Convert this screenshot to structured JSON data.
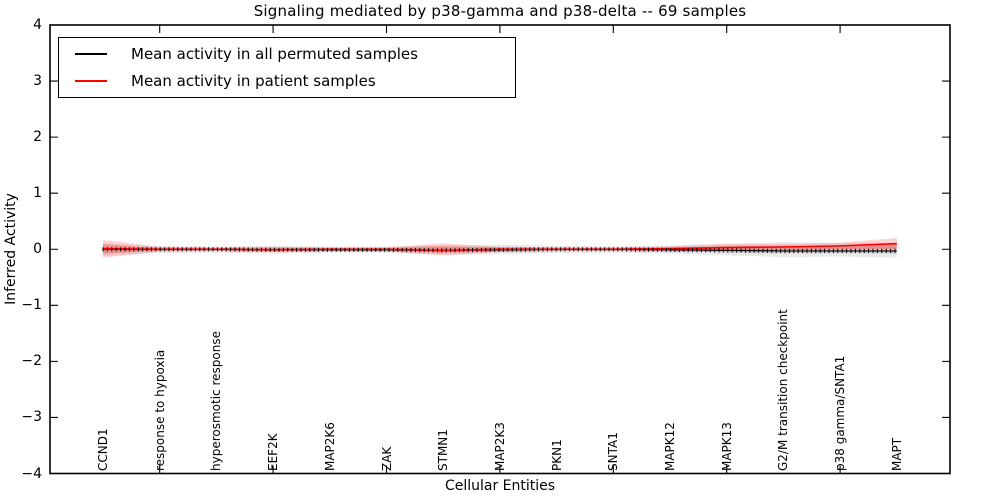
{
  "title": "Signaling mediated by p38-gamma and p38-delta -- 69 samples",
  "axes": {
    "ylabel": "Inferred Activity",
    "xlabel": "Cellular Entities",
    "ytick_labels": [
      "4",
      "3",
      "2",
      "1",
      "0",
      "−1",
      "−2",
      "−3",
      "−4"
    ],
    "ytick_values": [
      4,
      3,
      2,
      1,
      0,
      -1,
      -2,
      -3,
      -4
    ],
    "ylim": [
      -4,
      4
    ]
  },
  "legend": {
    "items": [
      {
        "label": "Mean activity in all permuted samples",
        "color": "#000000"
      },
      {
        "label": "Mean activity in patient samples",
        "color": "#ff0000"
      }
    ]
  },
  "chart_data": {
    "type": "line",
    "title": "Signaling mediated by p38-gamma and p38-delta -- 69 samples",
    "xlabel": "Cellular Entities",
    "ylabel": "Inferred Activity",
    "ylim": [
      -4,
      4
    ],
    "grid": false,
    "legend_position": "upper left",
    "categories": [
      "CCND1",
      "response to hypoxia",
      "hyperosmotic response",
      "EEF2K",
      "MAP2K6",
      "ZAK",
      "STMN1",
      "MAP2K3",
      "PKN1",
      "SNTA1",
      "MAPK12",
      "MAPK13",
      "G2/M transition checkpoint",
      "p38 gamma/SNTA1",
      "MAPT"
    ],
    "xtick_mark_indices": [
      1,
      3,
      5,
      7,
      9,
      11,
      13
    ],
    "series": [
      {
        "name": "Mean activity in all permuted samples",
        "color": "#000000",
        "band_color": "#9a9a9a",
        "values": [
          0.0,
          0.0,
          0.0,
          -0.01,
          -0.01,
          -0.01,
          -0.02,
          -0.01,
          0.0,
          0.0,
          -0.01,
          -0.02,
          -0.03,
          -0.03,
          -0.03
        ],
        "band_upper": [
          0.1,
          0.06,
          0.05,
          0.06,
          0.05,
          0.05,
          0.07,
          0.08,
          0.06,
          0.05,
          0.07,
          0.09,
          0.13,
          0.11,
          0.12
        ],
        "band_lower": [
          -0.12,
          -0.07,
          -0.06,
          -0.08,
          -0.06,
          -0.06,
          -0.1,
          -0.09,
          -0.07,
          -0.06,
          -0.08,
          -0.11,
          -0.14,
          -0.13,
          -0.15
        ]
      },
      {
        "name": "Mean activity in patient samples",
        "color": "#ff0000",
        "band_color": "#ff3b3b",
        "values": [
          0.01,
          0.0,
          0.0,
          -0.01,
          0.0,
          0.0,
          -0.02,
          0.0,
          0.0,
          0.0,
          0.01,
          0.03,
          0.04,
          0.06,
          0.1
        ],
        "band_upper": [
          0.17,
          0.04,
          0.03,
          0.04,
          0.03,
          0.03,
          0.11,
          0.04,
          0.03,
          0.03,
          0.05,
          0.1,
          0.09,
          0.12,
          0.2
        ],
        "band_lower": [
          -0.15,
          -0.04,
          -0.03,
          -0.05,
          -0.03,
          -0.04,
          -0.11,
          -0.05,
          -0.03,
          -0.03,
          -0.04,
          -0.04,
          -0.02,
          0.0,
          0.01
        ]
      }
    ]
  }
}
